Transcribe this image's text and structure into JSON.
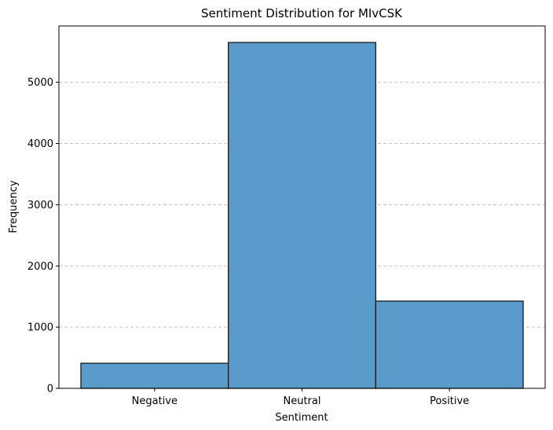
{
  "chart_data": {
    "type": "bar",
    "title": "Sentiment Distribution for MIvCSK",
    "xlabel": "Sentiment",
    "ylabel": "Frequency",
    "categories": [
      "Negative",
      "Neutral",
      "Positive"
    ],
    "values": [
      410,
      5650,
      1425
    ],
    "ylim": [
      0,
      5920
    ],
    "yticks": [
      0,
      1000,
      2000,
      3000,
      4000,
      5000
    ],
    "grid": "y-dashed",
    "bar_color": "#5b9bcb",
    "edge_color": "#1a1a1a"
  }
}
